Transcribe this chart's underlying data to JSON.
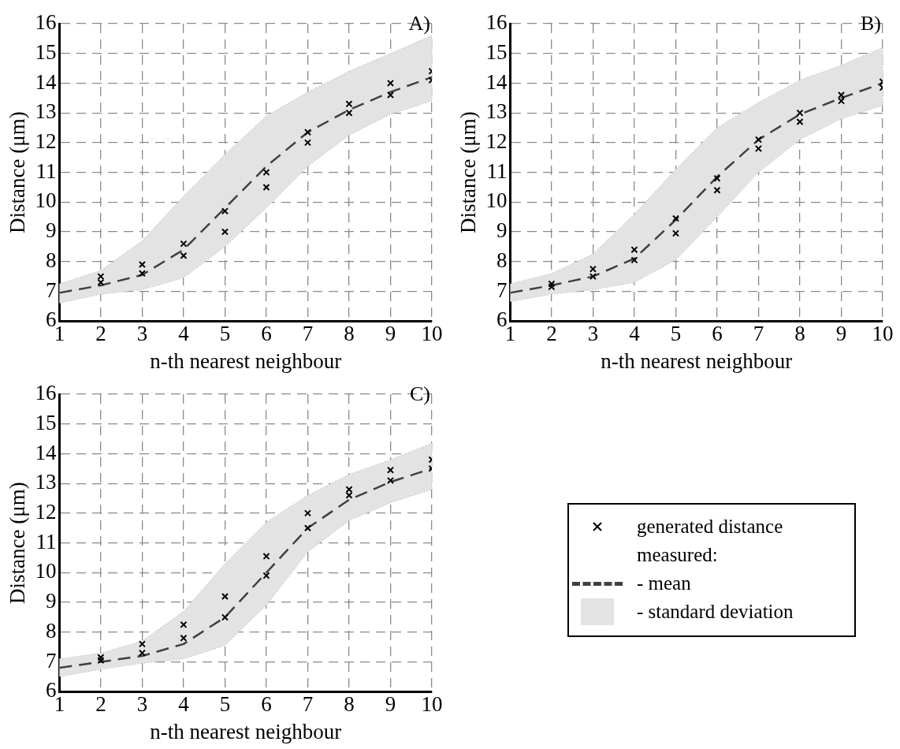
{
  "chart_data": [
    {
      "type": "line",
      "title": "A)",
      "xlabel": "n-th nearest neighbour",
      "ylabel": "Distance (μm)",
      "xlim": [
        1,
        10
      ],
      "xticks": [
        1,
        2,
        3,
        4,
        5,
        6,
        7,
        8,
        9,
        10
      ],
      "ylim": [
        6,
        16
      ],
      "yticks": [
        6,
        7,
        8,
        9,
        10,
        11,
        12,
        13,
        14,
        15,
        16
      ],
      "grid": true,
      "legend": false,
      "series": [
        {
          "type": "scatter",
          "marker": "cross",
          "color": "#000000",
          "x": [
            2,
            2,
            3,
            3,
            4,
            4,
            5,
            5,
            6,
            6,
            7,
            7,
            8,
            8,
            9,
            9,
            10,
            10
          ],
          "values": [
            7.3,
            7.5,
            7.6,
            7.9,
            8.2,
            8.6,
            9.0,
            9.7,
            10.5,
            11.0,
            12.0,
            12.35,
            13.0,
            13.3,
            13.6,
            14.0,
            14.1,
            14.4
          ]
        },
        {
          "line_style": "dashed",
          "color": "#404040",
          "x": [
            1,
            2,
            3,
            4,
            5,
            6,
            7,
            8,
            9,
            10
          ],
          "values": [
            6.95,
            7.2,
            7.55,
            8.4,
            9.8,
            11.2,
            12.35,
            13.1,
            13.7,
            14.2
          ],
          "lower": [
            6.6,
            6.9,
            7.05,
            7.45,
            8.5,
            9.8,
            11.2,
            12.25,
            12.95,
            13.4
          ],
          "upper": [
            7.25,
            7.7,
            8.7,
            10.2,
            11.6,
            12.9,
            13.7,
            14.4,
            15.0,
            15.6
          ]
        }
      ]
    },
    {
      "type": "line",
      "title": "B)",
      "xlabel": "n-th nearest neighbour",
      "ylabel": "Distance (μm)",
      "xlim": [
        1,
        10
      ],
      "xticks": [
        1,
        2,
        3,
        4,
        5,
        6,
        7,
        8,
        9,
        10
      ],
      "ylim": [
        6,
        16
      ],
      "yticks": [
        6,
        7,
        8,
        9,
        10,
        11,
        12,
        13,
        14,
        15,
        16
      ],
      "grid": true,
      "legend": false,
      "series": [
        {
          "type": "scatter",
          "marker": "cross",
          "color": "#000000",
          "x": [
            2,
            2,
            3,
            3,
            4,
            4,
            5,
            5,
            6,
            6,
            7,
            7,
            8,
            8,
            9,
            9,
            10,
            10
          ],
          "values": [
            7.15,
            7.25,
            7.5,
            7.75,
            8.05,
            8.4,
            8.95,
            9.45,
            10.4,
            10.8,
            11.8,
            12.1,
            12.7,
            13.0,
            13.4,
            13.6,
            13.85,
            14.05
          ]
        },
        {
          "line_style": "dashed",
          "color": "#404040",
          "x": [
            1,
            2,
            3,
            4,
            5,
            6,
            7,
            8,
            9,
            10
          ],
          "values": [
            6.95,
            7.2,
            7.5,
            8.1,
            9.4,
            10.85,
            12.1,
            12.95,
            13.5,
            14.0
          ],
          "lower": [
            6.65,
            6.9,
            7.05,
            7.3,
            8.05,
            9.5,
            11.0,
            12.1,
            12.8,
            13.25
          ],
          "upper": [
            7.25,
            7.6,
            8.25,
            9.6,
            11.1,
            12.5,
            13.35,
            14.1,
            14.6,
            15.2
          ]
        }
      ]
    },
    {
      "type": "line",
      "title": "C)",
      "xlabel": "n-th nearest neighbour",
      "ylabel": "Distance (μm)",
      "xlim": [
        1,
        10
      ],
      "xticks": [
        1,
        2,
        3,
        4,
        5,
        6,
        7,
        8,
        9,
        10
      ],
      "ylim": [
        6,
        16
      ],
      "yticks": [
        6,
        7,
        8,
        9,
        10,
        11,
        12,
        13,
        14,
        15,
        16
      ],
      "grid": true,
      "legend": "right",
      "annotations": [
        "measured:",
        "- standard deviation"
      ],
      "series": [
        {
          "type": "scatter",
          "marker": "cross",
          "name": "generated distance",
          "color": "#000000",
          "x": [
            2,
            2,
            3,
            3,
            4,
            4,
            5,
            5,
            6,
            6,
            7,
            7,
            8,
            8,
            9,
            9,
            10,
            10
          ],
          "values": [
            7.05,
            7.15,
            7.3,
            7.6,
            7.8,
            8.25,
            8.5,
            9.2,
            9.9,
            10.55,
            11.5,
            12.0,
            12.6,
            12.8,
            13.1,
            13.45,
            13.5,
            13.8
          ]
        },
        {
          "line_style": "dashed",
          "name": "- mean",
          "color": "#404040",
          "x": [
            1,
            2,
            3,
            4,
            5,
            6,
            7,
            8,
            9,
            10
          ],
          "values": [
            6.8,
            7.0,
            7.2,
            7.6,
            8.5,
            10.0,
            11.5,
            12.45,
            13.05,
            13.5
          ],
          "lower": [
            6.5,
            6.75,
            6.95,
            7.1,
            7.55,
            8.9,
            10.7,
            11.75,
            12.35,
            12.8
          ],
          "upper": [
            7.1,
            7.3,
            7.7,
            8.7,
            10.3,
            11.7,
            12.6,
            13.3,
            13.8,
            14.35
          ]
        }
      ]
    }
  ]
}
